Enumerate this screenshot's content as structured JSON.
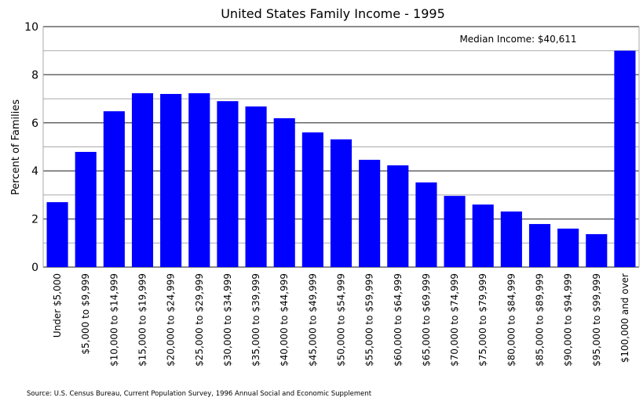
{
  "chart_data": {
    "type": "bar",
    "title": "United States Family Income - 1995",
    "xlabel": "",
    "ylabel": "Percent of Families",
    "ylim": [
      0,
      10
    ],
    "yticks": [
      0,
      2,
      4,
      6,
      8,
      10
    ],
    "grid": true,
    "bar_color": "#0000ff",
    "annotation": "Median Income: $40,611",
    "source": "Source: U.S. Census Bureau, Current Population Survey, 1996 Annual Social and Economic Supplement",
    "categories": [
      "Under $5,000",
      "$5,000 to $9,999",
      "$10,000 to $14,999",
      "$15,000 to $19,999",
      "$20,000 to $24,999",
      "$25,000 to $29,999",
      "$30,000 to $34,999",
      "$35,000 to $39,999",
      "$40,000 to $44,999",
      "$45,000 to $49,999",
      "$50,000 to $54,999",
      "$55,000 to $59,999",
      "$60,000 to $64,999",
      "$65,000 to $69,999",
      "$70,000 to $74,999",
      "$75,000 to $79,999",
      "$80,000 to $84,999",
      "$85,000 to $89,999",
      "$90,000 to $94,999",
      "$95,000 to $99,999",
      "$100,000 and over"
    ],
    "values": [
      2.7,
      4.79,
      6.48,
      7.23,
      7.2,
      7.23,
      6.9,
      6.68,
      6.19,
      5.6,
      5.31,
      4.46,
      4.23,
      3.52,
      2.96,
      2.6,
      2.31,
      1.79,
      1.6,
      1.37,
      9.0
    ]
  }
}
